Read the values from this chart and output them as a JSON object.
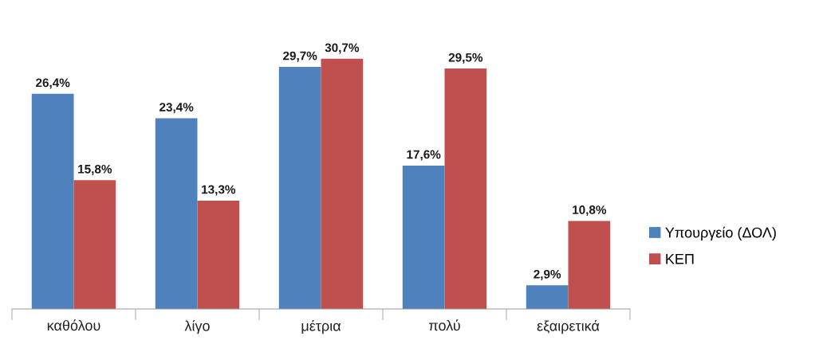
{
  "chart_data": {
    "type": "bar",
    "categories": [
      "καθόλου",
      "λίγο",
      "μέτρια",
      "πολύ",
      "εξαιρετικά"
    ],
    "series": [
      {
        "name": "Υπουργείο (ΔΟΛ)",
        "color": "#4f81bd",
        "values": [
          26.4,
          23.4,
          29.7,
          17.6,
          2.9
        ],
        "value_labels": [
          "26,4%",
          "23,4%",
          "29,7%",
          "17,6%",
          "2,9%"
        ]
      },
      {
        "name": "ΚΕΠ",
        "color": "#c0504d",
        "values": [
          15.8,
          13.3,
          30.7,
          29.5,
          10.8
        ],
        "value_labels": [
          "15,8%",
          "13,3%",
          "30,7%",
          "29,5%",
          "10,8%"
        ]
      }
    ],
    "legend": "right",
    "grid": false
  }
}
